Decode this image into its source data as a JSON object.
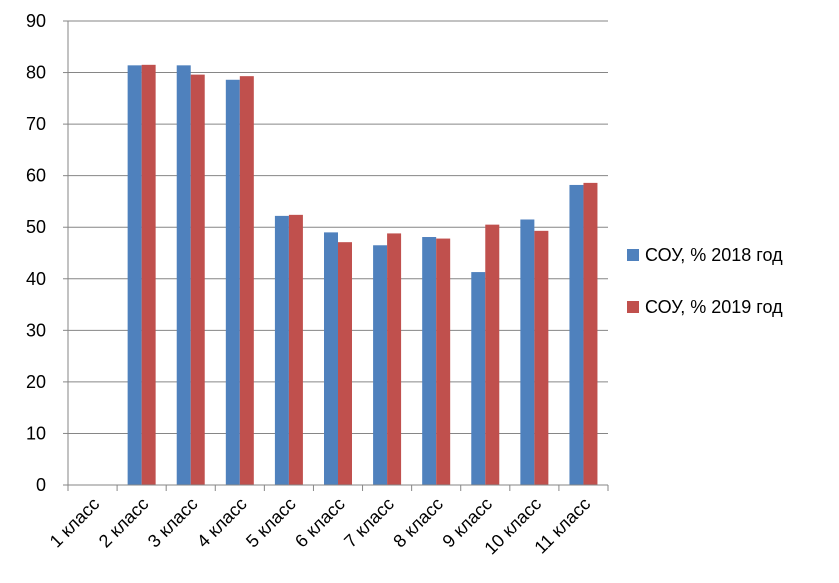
{
  "chart_data": {
    "type": "bar",
    "title": "",
    "xlabel": "",
    "ylabel": "",
    "ylim": [
      0,
      90
    ],
    "y_ticks": [
      "0",
      "10",
      "20",
      "30",
      "40",
      "50",
      "60",
      "70",
      "80",
      "90"
    ],
    "grid": true,
    "legend_position": "right",
    "categories": [
      "1 класс",
      "2 класс",
      "3 класс",
      "4 класс",
      "5 класс",
      "6 класс",
      "7 класс",
      "8 класс",
      "9 класс",
      "10 класс",
      "11 класс"
    ],
    "series": [
      {
        "name": "СОУ, % 2018 год",
        "color": "#4F81BD",
        "values": [
          0,
          81.4,
          81.4,
          78.6,
          52.2,
          49.0,
          46.5,
          48.1,
          41.3,
          51.5,
          58.2
        ]
      },
      {
        "name": "СОУ, % 2019 год",
        "color": "#C0504D",
        "values": [
          0,
          81.5,
          79.6,
          79.3,
          52.4,
          47.1,
          48.8,
          47.8,
          50.5,
          49.3,
          58.6
        ]
      }
    ]
  }
}
